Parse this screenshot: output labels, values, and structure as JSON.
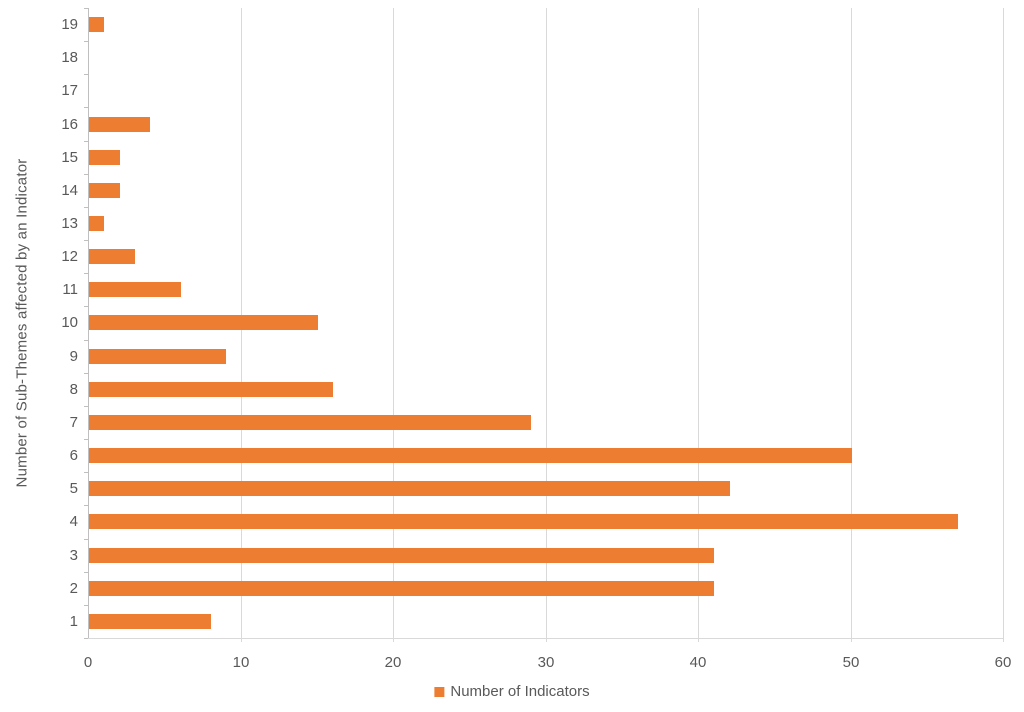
{
  "chart_data": {
    "type": "bar",
    "orientation": "horizontal",
    "title": "",
    "xlabel": "",
    "ylabel": "Number of Sub-Themes affected by an Indicator",
    "categories_top_to_bottom": [
      "19",
      "18",
      "17",
      "16",
      "15",
      "14",
      "13",
      "12",
      "11",
      "10",
      "9",
      "8",
      "7",
      "6",
      "5",
      "4",
      "3",
      "2",
      "1"
    ],
    "values_top_to_bottom": [
      1,
      0,
      0,
      4,
      2,
      2,
      1,
      3,
      6,
      15,
      9,
      16,
      29,
      50,
      42,
      57,
      41,
      41,
      8
    ],
    "xlim": [
      0,
      60
    ],
    "xticks": [
      "0",
      "10",
      "20",
      "30",
      "40",
      "50",
      "60"
    ],
    "xtick_values": [
      0,
      10,
      20,
      30,
      40,
      50,
      60
    ],
    "grid": true,
    "legend_position": "bottom",
    "legend": [
      {
        "label": "Number of Indicators",
        "color": "#ED7D31"
      }
    ],
    "colors": {
      "bar": "#ED7D31",
      "text": "#595959",
      "gridline": "#D9D9D9",
      "axis": "#BFBFBF"
    }
  }
}
